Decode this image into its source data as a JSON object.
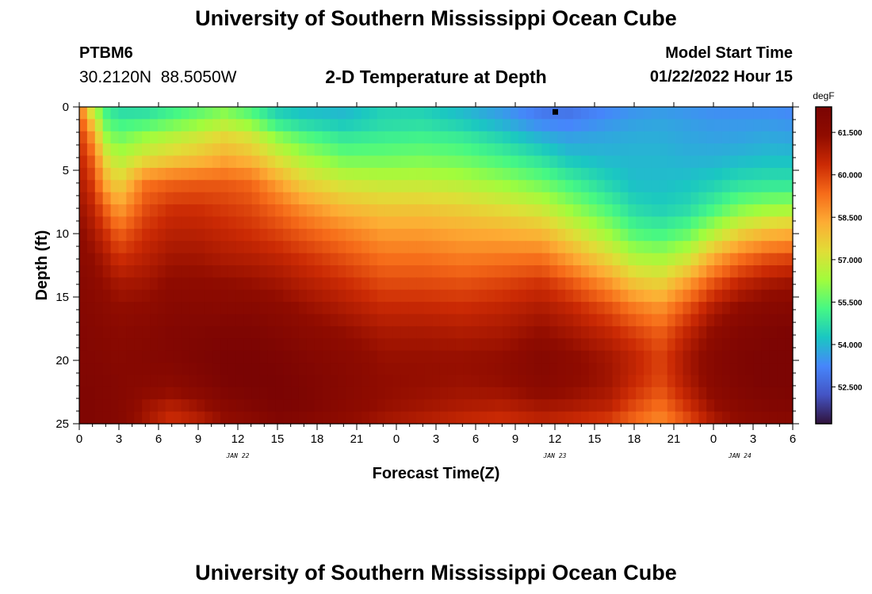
{
  "header": {
    "title": "University of Southern Mississippi Ocean Cube",
    "station": "PTBM6",
    "coords": "30.2120N  88.5050W",
    "subtitle": "2-D Temperature at Depth",
    "model_start_label": "Model Start Time",
    "model_start_value": "01/22/2022 Hour 15"
  },
  "footer": {
    "title": "University of Southern Mississippi Ocean Cube"
  },
  "chart_data": {
    "type": "heatmap",
    "title": "2-D Temperature at Depth",
    "xlabel": "Forecast Time(Z)",
    "ylabel": "Depth (ft)",
    "x_tick_labels": [
      "0",
      "3",
      "6",
      "9",
      "12",
      "15",
      "18",
      "21",
      "0",
      "3",
      "6",
      "9",
      "12",
      "15",
      "18",
      "21",
      "0",
      "3",
      "6"
    ],
    "x_range_hours": [
      0,
      54
    ],
    "x_tick_step_hours": 3,
    "date_labels": [
      {
        "text": "JAN 22",
        "hour": 12
      },
      {
        "text": "JAN 23",
        "hour": 36
      },
      {
        "text": "JAN 24",
        "hour": 50
      }
    ],
    "y_range": [
      0,
      25
    ],
    "y_ticks": [
      0,
      5,
      10,
      15,
      20,
      25
    ],
    "y_tick_labels": [
      "0",
      "5",
      "10",
      "15",
      "20",
      "25"
    ],
    "colorbar": {
      "unit": "degF",
      "range": [
        51.2,
        62.4
      ],
      "tick_values": [
        61.5,
        60.0,
        58.5,
        57.0,
        55.5,
        54.0,
        52.5
      ],
      "tick_labels": [
        "61.500",
        "60.000",
        "58.500",
        "57.000",
        "55.500",
        "54.000",
        "52.500"
      ],
      "colors": [
        "#30123b",
        "#4454c4",
        "#4686fb",
        "#1ac7c2",
        "#46f884",
        "#a2fc3c",
        "#e1dd37",
        "#fdac34",
        "#f66b19",
        "#cb2a04",
        "#900c00",
        "#7a0403"
      ]
    },
    "grid_resolution": {
      "time_steps": 91,
      "depth_levels": 26
    },
    "temperature_profiles_degF": {
      "depths_ft": [
        0,
        1,
        2,
        4,
        6,
        8,
        10,
        12,
        14,
        16,
        18,
        20,
        22,
        23.5,
        25
      ],
      "columns": [
        {
          "hour": 0,
          "temps": [
            59.2,
            59.8,
            60.2,
            60.6,
            60.9,
            61.2,
            61.5,
            61.6,
            61.8,
            61.9,
            62.0,
            62.0,
            62.1,
            62.1,
            62.1
          ]
        },
        {
          "hour": 1,
          "temps": [
            56.5,
            57.5,
            58.5,
            59.5,
            60.1,
            60.6,
            61.0,
            61.4,
            61.6,
            61.8,
            61.9,
            62.0,
            62.1,
            62.1,
            62.1
          ]
        },
        {
          "hour": 2,
          "temps": [
            55.0,
            55.5,
            56.0,
            57.3,
            58.3,
            59.5,
            60.3,
            60.9,
            61.3,
            61.6,
            61.8,
            61.9,
            62.0,
            62.0,
            62.0
          ]
        },
        {
          "hour": 3,
          "temps": [
            54.5,
            55.0,
            55.5,
            56.5,
            57.5,
            58.5,
            59.5,
            60.3,
            61.0,
            61.4,
            61.7,
            61.8,
            61.9,
            61.9,
            61.9
          ]
        },
        {
          "hour": 5,
          "temps": [
            54.6,
            55.0,
            56.0,
            57.2,
            59.2,
            59.8,
            60.3,
            60.7,
            61.1,
            61.5,
            61.8,
            61.9,
            61.7,
            61.2,
            61.0
          ]
        },
        {
          "hour": 7,
          "temps": [
            55.0,
            55.4,
            56.4,
            57.6,
            59.5,
            60.3,
            60.7,
            61.1,
            61.5,
            61.8,
            62.0,
            62.0,
            61.6,
            60.8,
            60.2
          ]
        },
        {
          "hour": 9,
          "temps": [
            55.4,
            55.8,
            56.8,
            57.9,
            59.6,
            60.3,
            60.7,
            61.1,
            61.5,
            61.8,
            62.1,
            62.2,
            61.9,
            61.2,
            60.6
          ]
        },
        {
          "hour": 11,
          "temps": [
            55.8,
            56.3,
            57.3,
            58.3,
            59.6,
            60.1,
            60.5,
            60.9,
            61.4,
            61.8,
            62.2,
            62.4,
            62.3,
            61.8,
            61.2
          ]
        },
        {
          "hour": 13,
          "temps": [
            55.2,
            55.7,
            56.9,
            58.0,
            59.4,
            59.9,
            60.3,
            60.8,
            61.3,
            61.8,
            62.2,
            62.4,
            62.4,
            62.1,
            61.5
          ]
        },
        {
          "hour": 15,
          "temps": [
            54.4,
            54.6,
            55.8,
            57.1,
            58.5,
            59.4,
            60.0,
            60.6,
            61.1,
            61.6,
            62.0,
            62.3,
            62.4,
            62.3,
            62.0
          ]
        },
        {
          "hour": 17,
          "temps": [
            54.1,
            54.3,
            55.2,
            56.4,
            57.6,
            58.8,
            59.6,
            60.3,
            60.8,
            61.3,
            61.7,
            62.0,
            62.2,
            62.2,
            61.8
          ]
        },
        {
          "hour": 20,
          "temps": [
            54.0,
            54.1,
            54.7,
            55.7,
            57.0,
            58.1,
            59.1,
            59.8,
            60.4,
            60.9,
            61.4,
            61.7,
            61.8,
            61.7,
            61.4
          ]
        },
        {
          "hour": 23,
          "temps": [
            54.5,
            54.5,
            54.9,
            55.7,
            56.8,
            57.8,
            58.6,
            59.3,
            59.9,
            60.5,
            61.0,
            61.3,
            61.4,
            61.3,
            61.0
          ]
        },
        {
          "hour": 26,
          "temps": [
            54.4,
            54.6,
            55.0,
            55.8,
            56.8,
            57.8,
            58.6,
            59.3,
            59.9,
            60.5,
            61.0,
            61.3,
            61.3,
            61.1,
            60.7
          ]
        },
        {
          "hour": 29,
          "temps": [
            54.0,
            54.2,
            54.8,
            55.6,
            56.6,
            57.6,
            58.4,
            59.1,
            59.8,
            60.4,
            60.9,
            61.3,
            61.2,
            60.9,
            60.4
          ]
        },
        {
          "hour": 32,
          "temps": [
            53.5,
            53.7,
            54.3,
            55.2,
            56.2,
            57.3,
            58.3,
            59.2,
            60.0,
            60.6,
            61.0,
            61.4,
            61.3,
            60.8,
            60.2
          ]
        },
        {
          "hour": 35,
          "temps": [
            52.9,
            53.1,
            53.7,
            54.7,
            55.7,
            56.9,
            58.1,
            59.3,
            60.3,
            60.9,
            61.4,
            61.9,
            61.7,
            61.1,
            60.5
          ]
        },
        {
          "hour": 37,
          "temps": [
            52.8,
            53.0,
            53.5,
            54.2,
            55.2,
            56.2,
            57.4,
            58.6,
            59.8,
            60.6,
            61.1,
            61.6,
            61.5,
            61.0,
            60.3
          ]
        },
        {
          "hour": 40,
          "temps": [
            53.2,
            53.4,
            53.7,
            54.0,
            54.5,
            55.3,
            56.3,
            57.5,
            58.8,
            59.9,
            60.6,
            61.1,
            61.1,
            60.7,
            60.0
          ]
        },
        {
          "hour": 42,
          "temps": [
            53.4,
            53.6,
            53.8,
            54.0,
            54.1,
            54.6,
            55.4,
            56.6,
            57.9,
            59.2,
            60.1,
            60.6,
            60.4,
            59.9,
            59.3
          ]
        },
        {
          "hour": 44,
          "temps": [
            53.5,
            53.7,
            53.8,
            54.0,
            54.1,
            54.4,
            55.2,
            56.4,
            57.6,
            58.8,
            59.6,
            60.0,
            59.8,
            59.3,
            58.8
          ]
        },
        {
          "hour": 46,
          "temps": [
            53.4,
            53.6,
            53.7,
            53.9,
            54.2,
            54.6,
            55.6,
            57.0,
            58.6,
            59.8,
            60.6,
            61.0,
            60.8,
            60.3,
            59.7
          ]
        },
        {
          "hour": 48,
          "temps": [
            53.3,
            53.5,
            53.6,
            53.9,
            54.4,
            55.2,
            56.6,
            58.4,
            59.8,
            60.9,
            61.5,
            61.8,
            61.7,
            61.3,
            60.8
          ]
        },
        {
          "hour": 50,
          "temps": [
            53.3,
            53.5,
            53.6,
            54.0,
            54.7,
            55.9,
            57.6,
            59.3,
            60.6,
            61.5,
            62.0,
            62.2,
            62.1,
            61.8,
            61.4
          ]
        },
        {
          "hour": 52,
          "temps": [
            53.3,
            53.5,
            53.7,
            54.1,
            54.8,
            56.2,
            58.1,
            59.8,
            61.0,
            61.8,
            62.2,
            62.3,
            62.3,
            62.0,
            61.6
          ]
        },
        {
          "hour": 54,
          "temps": [
            53.2,
            53.4,
            53.6,
            54.1,
            54.8,
            56.3,
            58.3,
            60.0,
            61.2,
            61.9,
            62.3,
            62.3,
            62.3,
            62.1,
            61.7
          ]
        }
      ]
    },
    "markers": [
      {
        "hour": 36,
        "depth_ft": 0.3
      }
    ]
  }
}
